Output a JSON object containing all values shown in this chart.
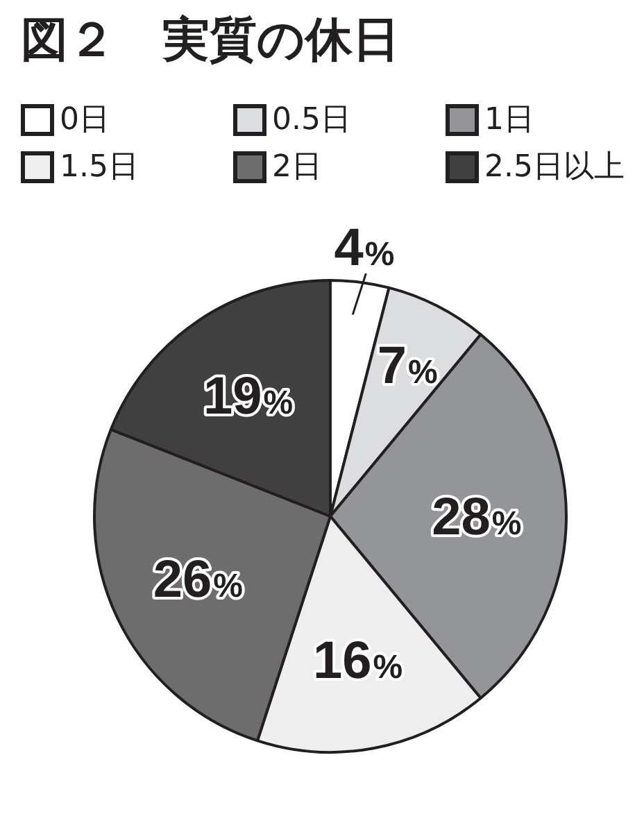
{
  "chart_data": {
    "type": "pie",
    "title": "図２　実質の休日",
    "categories": [
      "0日",
      "0.5日",
      "1日",
      "1.5日",
      "2日",
      "2.5日以上"
    ],
    "values": [
      4,
      7,
      28,
      16,
      26,
      19
    ],
    "colors": [
      "#ffffff",
      "#dcddde",
      "#939598",
      "#eeeeee",
      "#6d6d6d",
      "#404040"
    ],
    "value_labels": [
      "4%",
      "7%",
      "28%",
      "16%",
      "26%",
      "19%"
    ],
    "legend": "top"
  }
}
